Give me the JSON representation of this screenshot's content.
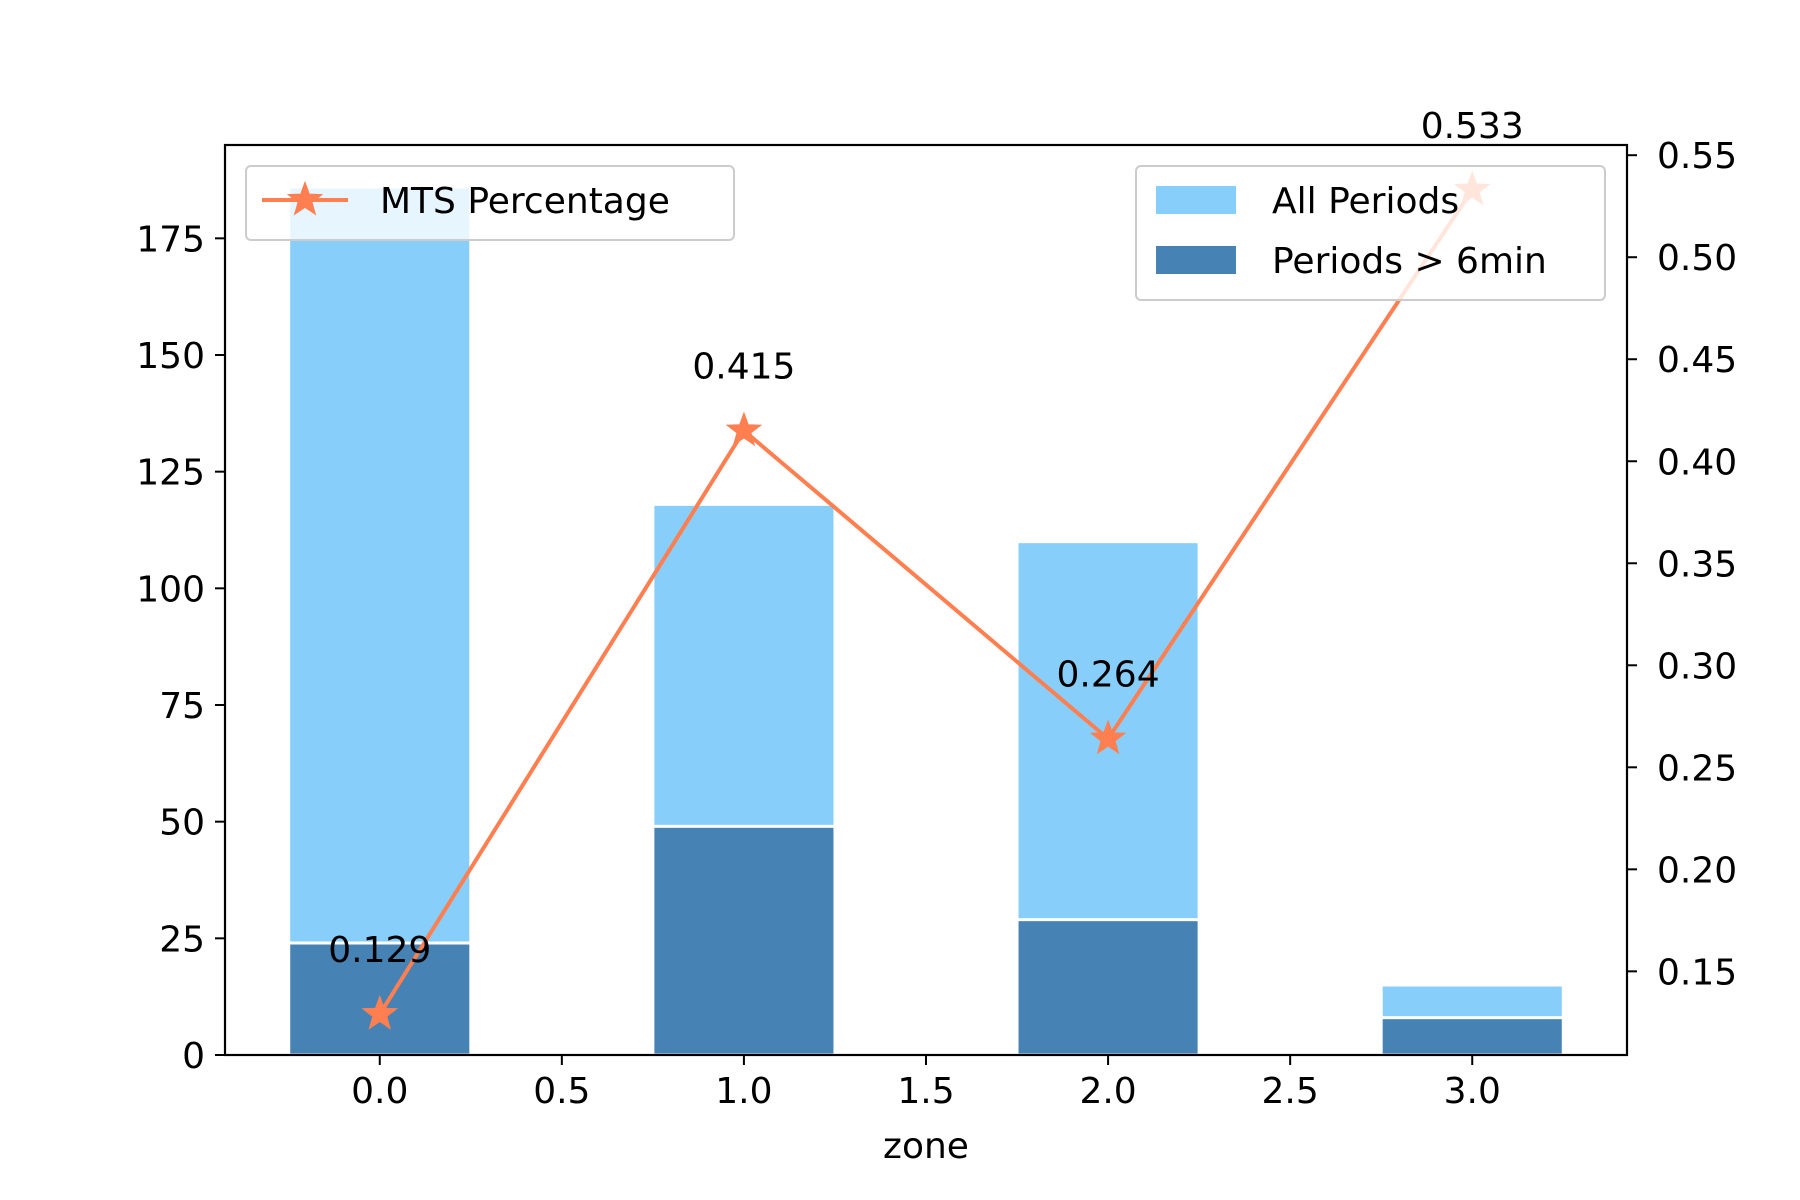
{
  "chart_data": {
    "type": "bar",
    "title": "",
    "xlabel": "zone",
    "ylabel": "",
    "ylabel_right": "",
    "x": [
      0,
      1,
      2,
      3
    ],
    "xlim": [
      -0.425,
      3.425
    ],
    "xticks": [
      "0.0",
      "0.5",
      "1.0",
      "1.5",
      "2.0",
      "2.5",
      "3.0"
    ],
    "xtick_values": [
      0,
      0.5,
      1,
      1.5,
      2,
      2.5,
      3
    ],
    "ylim": [
      0,
      195
    ],
    "yticks": [
      0,
      25,
      50,
      75,
      100,
      125,
      150,
      175
    ],
    "ylim_right": [
      0.109,
      0.555
    ],
    "yticks_right": [
      "0.15",
      "0.20",
      "0.25",
      "0.30",
      "0.35",
      "0.40",
      "0.45",
      "0.50",
      "0.55"
    ],
    "ytick_values_right": [
      0.15,
      0.2,
      0.25,
      0.3,
      0.35,
      0.4,
      0.45,
      0.5,
      0.55
    ],
    "bar_width": 0.5,
    "bar_series": [
      {
        "name": "All Periods",
        "color": "#87CEFA",
        "values": [
          186,
          118,
          110,
          15
        ]
      },
      {
        "name": "Periods > 6min",
        "color": "#4682B4",
        "values": [
          24,
          49,
          29,
          8
        ]
      }
    ],
    "line_series": {
      "name": "MTS Percentage",
      "color": "#FF7F50",
      "marker": "star",
      "values": [
        0.129,
        0.415,
        0.264,
        0.533
      ],
      "labels": [
        "0.129",
        "0.415",
        "0.264",
        "0.533"
      ]
    },
    "grid": false,
    "legend_line_position": "upper-left",
    "legend_bars_position": "upper-right"
  }
}
